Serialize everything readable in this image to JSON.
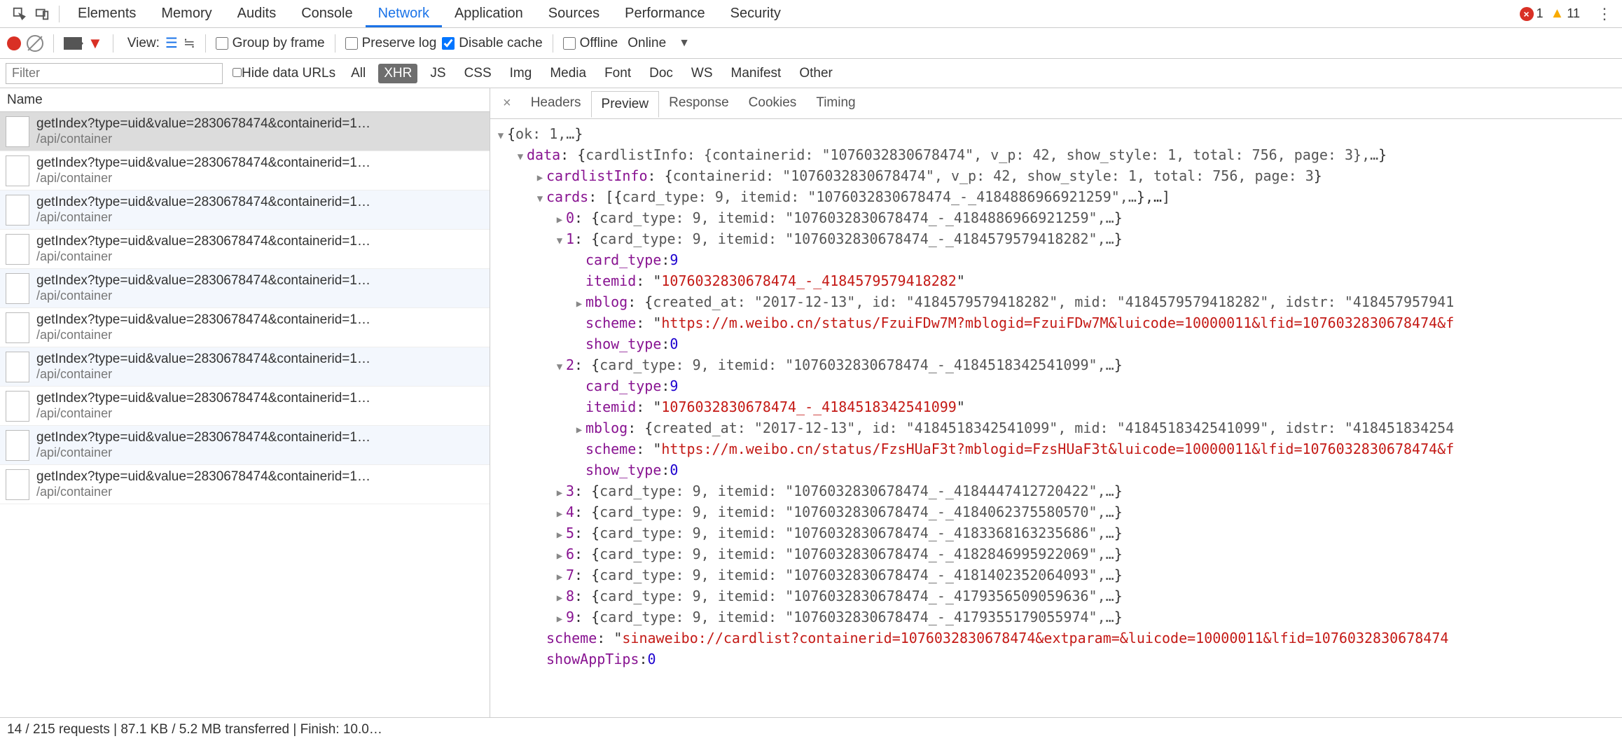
{
  "topTabs": {
    "items": [
      "Elements",
      "Memory",
      "Audits",
      "Console",
      "Network",
      "Application",
      "Sources",
      "Performance",
      "Security"
    ],
    "active": "Network",
    "errors": "1",
    "warnings": "11"
  },
  "toolbar": {
    "view": "View:",
    "groupByFrame": "Group by frame",
    "preserveLog": "Preserve log",
    "disableCache": "Disable cache",
    "offline": "Offline",
    "online": "Online"
  },
  "filterBar": {
    "placeholder": "Filter",
    "hideDataUrls": "Hide data URLs",
    "types": [
      "All",
      "XHR",
      "JS",
      "CSS",
      "Img",
      "Media",
      "Font",
      "Doc",
      "WS",
      "Manifest",
      "Other"
    ],
    "active": "XHR"
  },
  "reqList": {
    "header": "Name",
    "rows": [
      {
        "name": "getIndex?type=uid&value=2830678474&containerid=1…",
        "path": "/api/container",
        "sel": true
      },
      {
        "name": "getIndex?type=uid&value=2830678474&containerid=1…",
        "path": "/api/container"
      },
      {
        "name": "getIndex?type=uid&value=2830678474&containerid=1…",
        "path": "/api/container",
        "alt": true
      },
      {
        "name": "getIndex?type=uid&value=2830678474&containerid=1…",
        "path": "/api/container"
      },
      {
        "name": "getIndex?type=uid&value=2830678474&containerid=1…",
        "path": "/api/container",
        "alt": true
      },
      {
        "name": "getIndex?type=uid&value=2830678474&containerid=1…",
        "path": "/api/container"
      },
      {
        "name": "getIndex?type=uid&value=2830678474&containerid=1…",
        "path": "/api/container",
        "alt": true
      },
      {
        "name": "getIndex?type=uid&value=2830678474&containerid=1…",
        "path": "/api/container"
      },
      {
        "name": "getIndex?type=uid&value=2830678474&containerid=1…",
        "path": "/api/container",
        "alt": true
      },
      {
        "name": "getIndex?type=uid&value=2830678474&containerid=1…",
        "path": "/api/container"
      }
    ]
  },
  "detailTabs": {
    "items": [
      "Headers",
      "Preview",
      "Response",
      "Cookies",
      "Timing"
    ],
    "active": "Preview"
  },
  "json": {
    "lines": [
      {
        "indent": 0,
        "arrow": "open",
        "segs": [
          [
            "punc",
            "{"
          ],
          [
            "preview-txt",
            "ok: 1,…"
          ],
          [
            "punc",
            "}"
          ]
        ]
      },
      {
        "indent": 1,
        "arrow": "open",
        "segs": [
          [
            "key",
            "data"
          ],
          [
            "punc",
            ": {"
          ],
          [
            "preview-txt",
            "cardlistInfo: {containerid: \"1076032830678474\", v_p: 42, show_style: 1, total: 756, page: 3},…"
          ],
          [
            "punc",
            "}"
          ]
        ]
      },
      {
        "indent": 2,
        "arrow": "closed",
        "segs": [
          [
            "key",
            "cardlistInfo"
          ],
          [
            "punc",
            ": {"
          ],
          [
            "preview-txt",
            "containerid: \"1076032830678474\", v_p: 42, show_style: 1, total: 756, page: 3"
          ],
          [
            "punc",
            "}"
          ]
        ]
      },
      {
        "indent": 2,
        "arrow": "open",
        "segs": [
          [
            "key",
            "cards"
          ],
          [
            "punc",
            ": [{"
          ],
          [
            "preview-txt",
            "card_type: 9, itemid: \"1076032830678474_-_4184886966921259\",…"
          ],
          [
            "punc",
            "},…]"
          ]
        ]
      },
      {
        "indent": 3,
        "arrow": "closed",
        "segs": [
          [
            "key",
            "0"
          ],
          [
            "punc",
            ": {"
          ],
          [
            "preview-txt",
            "card_type: 9, itemid: \"1076032830678474_-_4184886966921259\",…"
          ],
          [
            "punc",
            "}"
          ]
        ]
      },
      {
        "indent": 3,
        "arrow": "open",
        "segs": [
          [
            "key",
            "1"
          ],
          [
            "punc",
            ": {"
          ],
          [
            "preview-txt",
            "card_type: 9, itemid: \"1076032830678474_-_4184579579418282\",…"
          ],
          [
            "punc",
            "}"
          ]
        ]
      },
      {
        "indent": 4,
        "arrow": "none",
        "segs": [
          [
            "key",
            "card_type"
          ],
          [
            "punc",
            ": "
          ],
          [
            "num",
            "9"
          ]
        ]
      },
      {
        "indent": 4,
        "arrow": "none",
        "segs": [
          [
            "key",
            "itemid"
          ],
          [
            "punc",
            ": \""
          ],
          [
            "str",
            "1076032830678474_-_4184579579418282"
          ],
          [
            "punc",
            "\""
          ]
        ]
      },
      {
        "indent": 4,
        "arrow": "closed",
        "segs": [
          [
            "key",
            "mblog"
          ],
          [
            "punc",
            ": {"
          ],
          [
            "preview-txt",
            "created_at: \"2017-12-13\", id: \"4184579579418282\", mid: \"4184579579418282\", idstr: \"418457957941"
          ],
          [
            "punc",
            ""
          ]
        ]
      },
      {
        "indent": 4,
        "arrow": "none",
        "segs": [
          [
            "key",
            "scheme"
          ],
          [
            "punc",
            ": \""
          ],
          [
            "str",
            "https://m.weibo.cn/status/FzuiFDw7M?mblogid=FzuiFDw7M&luicode=10000011&lfid=1076032830678474&f"
          ],
          [
            "punc",
            ""
          ]
        ]
      },
      {
        "indent": 4,
        "arrow": "none",
        "segs": [
          [
            "key",
            "show_type"
          ],
          [
            "punc",
            ": "
          ],
          [
            "num",
            "0"
          ]
        ]
      },
      {
        "indent": 3,
        "arrow": "open",
        "segs": [
          [
            "key",
            "2"
          ],
          [
            "punc",
            ": {"
          ],
          [
            "preview-txt",
            "card_type: 9, itemid: \"1076032830678474_-_4184518342541099\",…"
          ],
          [
            "punc",
            "}"
          ]
        ]
      },
      {
        "indent": 4,
        "arrow": "none",
        "segs": [
          [
            "key",
            "card_type"
          ],
          [
            "punc",
            ": "
          ],
          [
            "num",
            "9"
          ]
        ]
      },
      {
        "indent": 4,
        "arrow": "none",
        "segs": [
          [
            "key",
            "itemid"
          ],
          [
            "punc",
            ": \""
          ],
          [
            "str",
            "1076032830678474_-_4184518342541099"
          ],
          [
            "punc",
            "\""
          ]
        ]
      },
      {
        "indent": 4,
        "arrow": "closed",
        "segs": [
          [
            "key",
            "mblog"
          ],
          [
            "punc",
            ": {"
          ],
          [
            "preview-txt",
            "created_at: \"2017-12-13\", id: \"4184518342541099\", mid: \"4184518342541099\", idstr: \"418451834254"
          ],
          [
            "punc",
            ""
          ]
        ]
      },
      {
        "indent": 4,
        "arrow": "none",
        "segs": [
          [
            "key",
            "scheme"
          ],
          [
            "punc",
            ": \""
          ],
          [
            "str",
            "https://m.weibo.cn/status/FzsHUaF3t?mblogid=FzsHUaF3t&luicode=10000011&lfid=1076032830678474&f"
          ],
          [
            "punc",
            ""
          ]
        ]
      },
      {
        "indent": 4,
        "arrow": "none",
        "segs": [
          [
            "key",
            "show_type"
          ],
          [
            "punc",
            ": "
          ],
          [
            "num",
            "0"
          ]
        ]
      },
      {
        "indent": 3,
        "arrow": "closed",
        "segs": [
          [
            "key",
            "3"
          ],
          [
            "punc",
            ": {"
          ],
          [
            "preview-txt",
            "card_type: 9, itemid: \"1076032830678474_-_4184447412720422\",…"
          ],
          [
            "punc",
            "}"
          ]
        ]
      },
      {
        "indent": 3,
        "arrow": "closed",
        "segs": [
          [
            "key",
            "4"
          ],
          [
            "punc",
            ": {"
          ],
          [
            "preview-txt",
            "card_type: 9, itemid: \"1076032830678474_-_4184062375580570\",…"
          ],
          [
            "punc",
            "}"
          ]
        ]
      },
      {
        "indent": 3,
        "arrow": "closed",
        "segs": [
          [
            "key",
            "5"
          ],
          [
            "punc",
            ": {"
          ],
          [
            "preview-txt",
            "card_type: 9, itemid: \"1076032830678474_-_4183368163235686\",…"
          ],
          [
            "punc",
            "}"
          ]
        ]
      },
      {
        "indent": 3,
        "arrow": "closed",
        "segs": [
          [
            "key",
            "6"
          ],
          [
            "punc",
            ": {"
          ],
          [
            "preview-txt",
            "card_type: 9, itemid: \"1076032830678474_-_4182846995922069\",…"
          ],
          [
            "punc",
            "}"
          ]
        ]
      },
      {
        "indent": 3,
        "arrow": "closed",
        "segs": [
          [
            "key",
            "7"
          ],
          [
            "punc",
            ": {"
          ],
          [
            "preview-txt",
            "card_type: 9, itemid: \"1076032830678474_-_4181402352064093\",…"
          ],
          [
            "punc",
            "}"
          ]
        ]
      },
      {
        "indent": 3,
        "arrow": "closed",
        "segs": [
          [
            "key",
            "8"
          ],
          [
            "punc",
            ": {"
          ],
          [
            "preview-txt",
            "card_type: 9, itemid: \"1076032830678474_-_4179356509059636\",…"
          ],
          [
            "punc",
            "}"
          ]
        ]
      },
      {
        "indent": 3,
        "arrow": "closed",
        "segs": [
          [
            "key",
            "9"
          ],
          [
            "punc",
            ": {"
          ],
          [
            "preview-txt",
            "card_type: 9, itemid: \"1076032830678474_-_4179355179055974\",…"
          ],
          [
            "punc",
            "}"
          ]
        ]
      },
      {
        "indent": 2,
        "arrow": "none",
        "segs": [
          [
            "key",
            "scheme"
          ],
          [
            "punc",
            ": \""
          ],
          [
            "str",
            "sinaweibo://cardlist?containerid=1076032830678474&extparam=&luicode=10000011&lfid=1076032830678474"
          ],
          [
            "punc",
            ""
          ]
        ]
      },
      {
        "indent": 2,
        "arrow": "none",
        "segs": [
          [
            "key",
            "showAppTips"
          ],
          [
            "punc",
            ": "
          ],
          [
            "num",
            "0"
          ]
        ]
      }
    ]
  },
  "statusBar": "14 / 215 requests | 87.1 KB / 5.2 MB transferred | Finish: 10.0…"
}
